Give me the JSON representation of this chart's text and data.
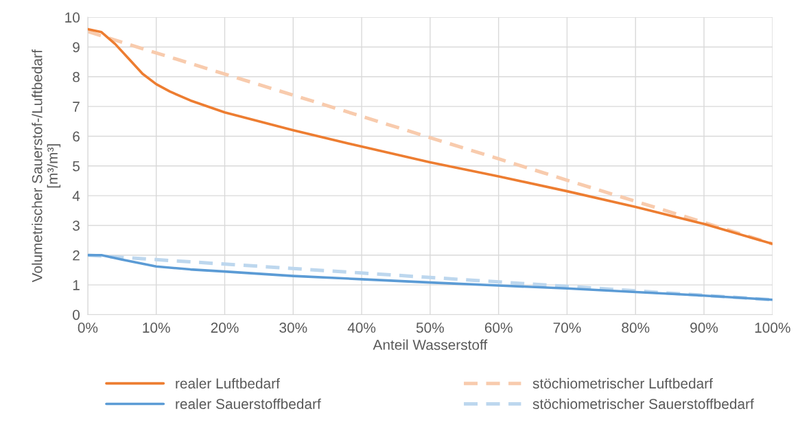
{
  "chart_data": {
    "type": "line",
    "xlabel": "Anteil Wasserstoff",
    "ylabel": "Volumetrischer Sauerstof-/Luftbedarf\n[m³/m³]",
    "series": [
      {
        "name": "realer Luftbedarf",
        "color": "#ed7d31",
        "line_style": "solid",
        "x": [
          0,
          2,
          4,
          6,
          8,
          10,
          12,
          15,
          20,
          25,
          30,
          40,
          50,
          60,
          70,
          80,
          90,
          100
        ],
        "values": [
          9.6,
          9.5,
          9.1,
          8.6,
          8.1,
          7.75,
          7.5,
          7.2,
          6.8,
          6.5,
          6.2,
          5.65,
          5.12,
          4.65,
          4.15,
          3.62,
          3.05,
          2.38
        ]
      },
      {
        "name": "stöchiometrischer Luftbedarf",
        "color": "#f8cbad",
        "line_style": "dashed",
        "x": [
          0,
          10,
          20,
          30,
          40,
          50,
          60,
          70,
          80,
          90,
          100
        ],
        "values": [
          9.52,
          8.8,
          8.09,
          7.38,
          6.67,
          5.95,
          5.24,
          4.52,
          3.81,
          3.1,
          2.38
        ]
      },
      {
        "name": "realer Sauerstoffbedarf",
        "color": "#5b9bd5",
        "line_style": "solid",
        "x": [
          0,
          2,
          5,
          10,
          15,
          20,
          30,
          40,
          50,
          60,
          70,
          80,
          90,
          100
        ],
        "values": [
          2.0,
          2.0,
          1.85,
          1.62,
          1.52,
          1.45,
          1.3,
          1.19,
          1.08,
          0.98,
          0.88,
          0.76,
          0.64,
          0.5
        ]
      },
      {
        "name": "stöchiometrischer Sauerstoffbedarf",
        "color": "#bdd7ee",
        "line_style": "dashed",
        "x": [
          0,
          10,
          20,
          30,
          40,
          50,
          60,
          70,
          80,
          90,
          100
        ],
        "values": [
          2.0,
          1.85,
          1.7,
          1.55,
          1.4,
          1.25,
          1.1,
          0.95,
          0.8,
          0.65,
          0.5
        ]
      }
    ],
    "xlim": [
      0,
      100
    ],
    "xticks": [
      {
        "value": 0,
        "label": "0%"
      },
      {
        "value": 10,
        "label": "10%"
      },
      {
        "value": 20,
        "label": "20%"
      },
      {
        "value": 30,
        "label": "30%"
      },
      {
        "value": 40,
        "label": "40%"
      },
      {
        "value": 50,
        "label": "50%"
      },
      {
        "value": 60,
        "label": "60%"
      },
      {
        "value": 70,
        "label": "70%"
      },
      {
        "value": 80,
        "label": "80%"
      },
      {
        "value": 90,
        "label": "90%"
      },
      {
        "value": 100,
        "label": "100%"
      }
    ],
    "ylim": [
      0,
      10
    ],
    "yticks": [
      0,
      1,
      2,
      3,
      4,
      5,
      6,
      7,
      8,
      9,
      10
    ],
    "grid": true,
    "legend": "bottom",
    "marker": "none"
  }
}
